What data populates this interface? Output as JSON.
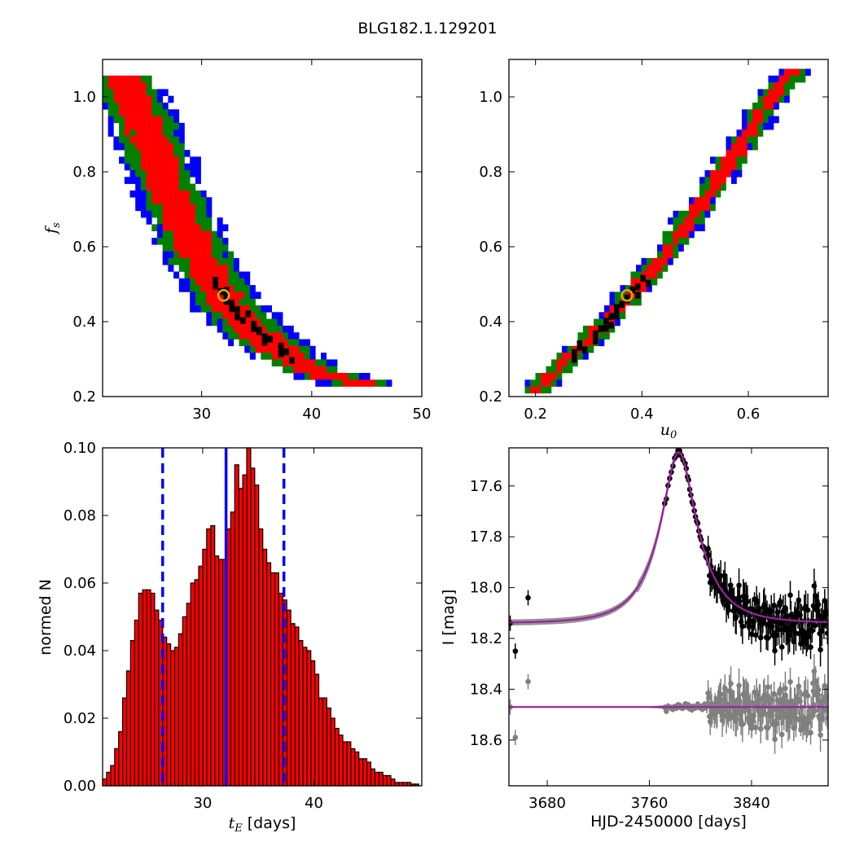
{
  "figure": {
    "title": "BLG182.1.129201"
  },
  "chart_data": [
    {
      "panel": "top-left",
      "type": "heatmap",
      "xlabel": "",
      "ylabel": "f_s",
      "xlim": [
        21,
        50
      ],
      "ylim": [
        0.2,
        1.1
      ],
      "xticks": [
        30,
        40,
        50
      ],
      "yticks": [
        0.2,
        0.4,
        0.6,
        0.8,
        1.0
      ],
      "colors": {
        "outer": "#0000ff",
        "middle": "#008000",
        "inner": "#ff0000",
        "best": "#000000"
      },
      "best_fit": {
        "x": 32.0,
        "y": 0.47
      },
      "ridge": [
        [
          22.5,
          1.07
        ],
        [
          25,
          0.92
        ],
        [
          27.5,
          0.72
        ],
        [
          30,
          0.57
        ],
        [
          32,
          0.47
        ],
        [
          35,
          0.38
        ],
        [
          38,
          0.31
        ],
        [
          41,
          0.27
        ],
        [
          44,
          0.245
        ],
        [
          47,
          0.23
        ]
      ],
      "ridge_widths": {
        "inner": 1.6,
        "middle": 2.6,
        "outer": 3.4
      }
    },
    {
      "panel": "top-right",
      "type": "heatmap",
      "xlabel": "u_0",
      "ylabel": "",
      "xlim": [
        0.15,
        0.75
      ],
      "ylim": [
        0.2,
        1.1
      ],
      "xticks": [
        0.2,
        0.4,
        0.6
      ],
      "yticks": [
        0.2,
        0.4,
        0.6,
        0.8,
        1.0
      ],
      "colors": {
        "outer": "#0000ff",
        "middle": "#008000",
        "inner": "#ff0000",
        "best": "#000000"
      },
      "best_fit": {
        "x": 0.372,
        "y": 0.47
      },
      "ridge": [
        [
          0.195,
          0.215
        ],
        [
          0.25,
          0.295
        ],
        [
          0.3,
          0.36
        ],
        [
          0.35,
          0.435
        ],
        [
          0.4,
          0.515
        ],
        [
          0.45,
          0.6
        ],
        [
          0.5,
          0.7
        ],
        [
          0.55,
          0.8
        ],
        [
          0.6,
          0.91
        ],
        [
          0.65,
          1.02
        ],
        [
          0.685,
          1.075
        ]
      ],
      "ridge_widths": {
        "inner": 0.013,
        "middle": 0.022,
        "outer": 0.03
      }
    },
    {
      "panel": "bottom-left",
      "type": "bar",
      "xlabel": "t_E",
      "xlabel_unit": "[days]",
      "ylabel": "normed N",
      "xlim": [
        21,
        49.7
      ],
      "ylim": [
        0,
        0.1
      ],
      "xticks": [
        30,
        40
      ],
      "yticks": [
        "0.00",
        "0.02",
        "0.04",
        "0.06",
        "0.08",
        "0.10"
      ],
      "bar_width": 0.5,
      "bin_start": 21.0,
      "values": [
        0.002,
        0.004,
        0.006,
        0.011,
        0.016,
        0.026,
        0.034,
        0.043,
        0.049,
        0.057,
        0.058,
        0.058,
        0.057,
        0.052,
        0.049,
        0.044,
        0.042,
        0.04,
        0.041,
        0.045,
        0.05,
        0.054,
        0.06,
        0.061,
        0.065,
        0.07,
        0.076,
        0.077,
        0.068,
        0.067,
        0.067,
        0.076,
        0.081,
        0.095,
        0.088,
        0.092,
        0.1,
        0.094,
        0.089,
        0.076,
        0.07,
        0.066,
        0.063,
        0.063,
        0.057,
        0.055,
        0.052,
        0.048,
        0.047,
        0.043,
        0.041,
        0.04,
        0.037,
        0.033,
        0.026,
        0.026,
        0.023,
        0.02,
        0.017,
        0.015,
        0.013,
        0.013,
        0.011,
        0.01,
        0.008,
        0.008,
        0.007,
        0.005,
        0.004,
        0.004,
        0.003,
        0.003,
        0.002,
        0.001,
        0.001,
        0.001,
        0.001,
        0.0005,
        0.0005
      ],
      "bar_color": "#ff0000",
      "median": 32.1,
      "interval": [
        26.4,
        37.3
      ],
      "line_color": "#0000ff"
    },
    {
      "panel": "bottom-right",
      "type": "scatter",
      "xlabel": "HJD-2450000 [days]",
      "ylabel": "I [mag]",
      "xlim": [
        3650,
        3900
      ],
      "ylim": [
        18.78,
        17.45
      ],
      "xticks": [
        3680,
        3760,
        3840
      ],
      "yticks": [
        "17.6",
        "17.8",
        "18.0",
        "18.2",
        "18.4",
        "18.6"
      ],
      "model": {
        "t0": 3783,
        "tE": 32.1,
        "u0": 0.372,
        "fs": 0.47,
        "baseline": 18.14
      },
      "residual_offset": 18.47,
      "colors": {
        "data": "#000000",
        "residuals": "#808080",
        "model": "#a020a0",
        "band": "#808080"
      },
      "early_points": [
        [
          3651,
          18.14
        ],
        [
          3655,
          18.25
        ],
        [
          3665,
          18.04
        ]
      ],
      "early_residuals": [
        [
          3651,
          18.47
        ],
        [
          3655,
          18.59
        ],
        [
          3665,
          18.37
        ]
      ]
    }
  ]
}
